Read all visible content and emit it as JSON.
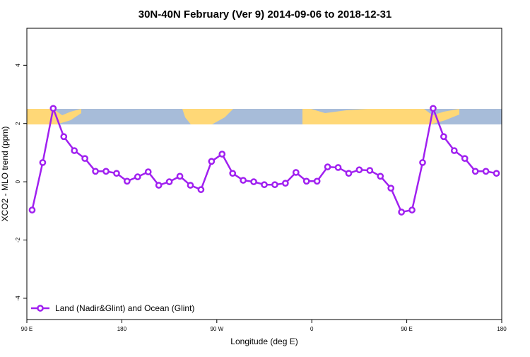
{
  "chart_data": {
    "type": "line",
    "title": "30N-40N February (Ver 9)   2014-09-06 to 2018-12-31",
    "x_label": "Longitude (deg E)",
    "y_label": "XCO2 - MLO trend (ppm)",
    "x": [
      95,
      105,
      115,
      125,
      135,
      145,
      155,
      165,
      175,
      185,
      195,
      205,
      215,
      225,
      235,
      245,
      255,
      265,
      275,
      285,
      295,
      305,
      315,
      325,
      335,
      345,
      355,
      365,
      375,
      385,
      395,
      405,
      415,
      425,
      435,
      445,
      455,
      465,
      475,
      485,
      495,
      505,
      515,
      525,
      535
    ],
    "series": [
      {
        "name": "Land (Nadir&Glint) and Ocean (Glint)",
        "color": "#a020f0",
        "values": [
          -0.97,
          0.66,
          2.52,
          1.55,
          1.07,
          0.8,
          0.36,
          0.36,
          0.29,
          0.02,
          0.17,
          0.34,
          -0.12,
          0.0,
          0.19,
          -0.12,
          -0.27,
          0.7,
          0.95,
          0.29,
          0.05,
          0.0,
          -0.1,
          -0.1,
          -0.05,
          0.32,
          0.02,
          0.02,
          0.51,
          0.49,
          0.29,
          0.41,
          0.39,
          0.19,
          -0.22,
          -1.04,
          -0.97,
          0.66,
          2.52,
          1.55,
          1.07,
          0.8,
          0.36,
          0.36,
          0.29
        ]
      }
    ],
    "xlim": [
      90,
      540
    ],
    "xticks": [
      {
        "value": 90,
        "label": "90 E"
      },
      180,
      {
        "value": 270,
        "label": "90 W"
      },
      {
        "value": 360,
        "label": "0"
      },
      {
        "value": 450,
        "label": "90 E"
      },
      {
        "value": 540,
        "label": "180"
      }
    ],
    "ylim": [
      -4.73,
      5.27
    ],
    "yticks": [
      -4,
      -2,
      0,
      2,
      4
    ],
    "legend": "bottom-left"
  }
}
